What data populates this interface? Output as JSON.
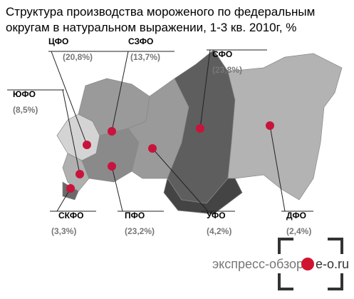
{
  "header": {
    "title_lines": [
      "Структура производства мороженого по федеральным",
      "округам в натуральном выражении, 1-3 кв. 2010г, %"
    ]
  },
  "regions": [
    {
      "name": "ЦФО",
      "value_label": "(20,8%)"
    },
    {
      "name": "СЗФО",
      "value_label": "(13,7%)"
    },
    {
      "name": "СФО",
      "value_label": "(23,8%)"
    },
    {
      "name": "ЮФО",
      "value_label": "(8,5%)"
    },
    {
      "name": "СКФО",
      "value_label": "(3,3%)"
    },
    {
      "name": "ПФО",
      "value_label": "(23,2%)"
    },
    {
      "name": "УФО",
      "value_label": "(4,2%)"
    },
    {
      "name": "ДФО",
      "value_label": "(2,4%)"
    }
  ],
  "logo": {
    "left": "экспресс-обзор",
    "right": "e-o.ru"
  }
}
